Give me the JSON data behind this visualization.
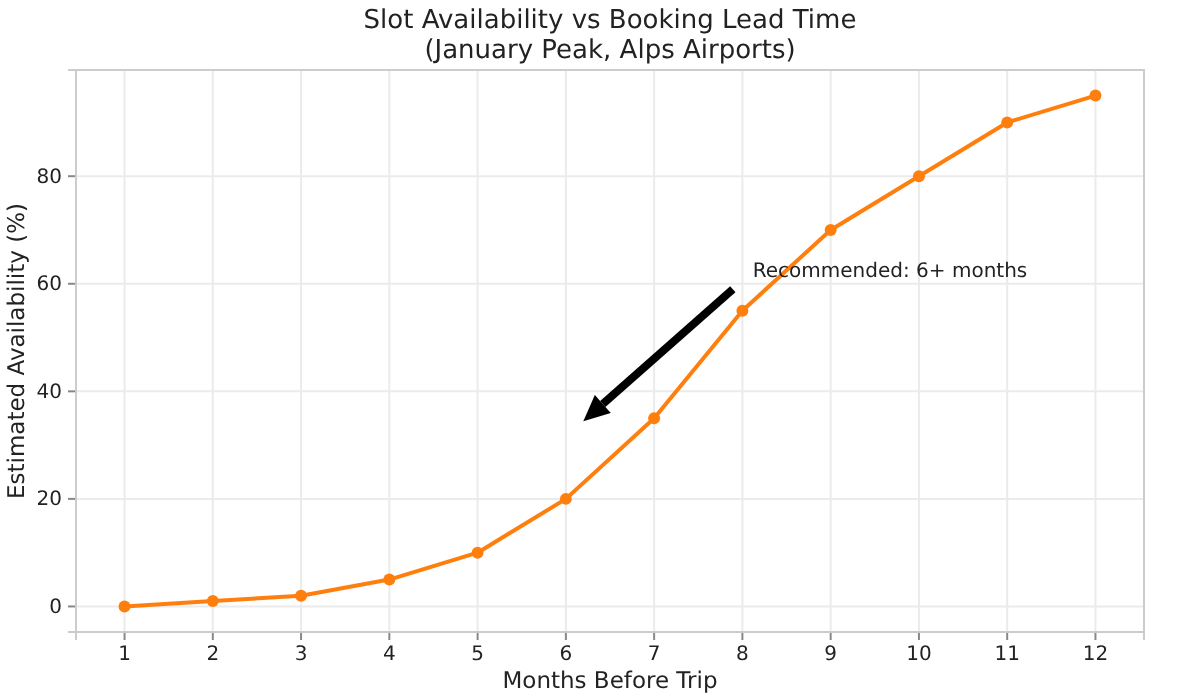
{
  "chart_data": {
    "type": "line",
    "title": "Slot Availability vs Booking Lead Time\n(January Peak, Alps Airports)",
    "xlabel": "Months Before Trip",
    "ylabel": "Estimated Availability (%)",
    "x": [
      1,
      2,
      3,
      4,
      5,
      6,
      7,
      8,
      9,
      10,
      11,
      12
    ],
    "series": [
      {
        "color": "#ff7f0e",
        "values": [
          0,
          1,
          2,
          5,
          10,
          20,
          35,
          55,
          70,
          80,
          90,
          95
        ]
      }
    ],
    "xlim": [
      0.45,
      12.55
    ],
    "ylim": [
      -4.75,
      99.75
    ],
    "xticks": [
      1,
      2,
      3,
      4,
      5,
      6,
      7,
      8,
      9,
      10,
      11,
      12
    ],
    "yticks": [
      0,
      20,
      40,
      60,
      80
    ],
    "grid": true,
    "marker": "circle",
    "line_style": "solid",
    "annotations": [
      "Recommended: 6+ months"
    ]
  }
}
